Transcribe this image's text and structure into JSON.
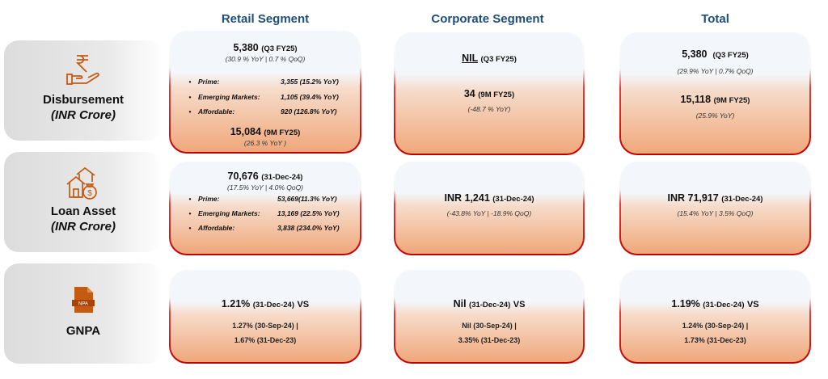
{
  "columns": {
    "retail": "Retail Segment",
    "corporate": "Corporate Segment",
    "total": "Total"
  },
  "rows": {
    "disbursement": {
      "title": "Disbursement",
      "subtitle": "(INR Crore)",
      "icon": "rupee-hand-icon"
    },
    "loan_asset": {
      "title": "Loan Asset",
      "subtitle": "(INR Crore)",
      "icon": "houses-money-bag-icon"
    },
    "gnpa": {
      "title": "GNPA",
      "icon": "npa-document-icon",
      "icon_text": "NPA"
    }
  },
  "colors": {
    "accent": "#c55a11",
    "header": "#1f4e79",
    "card_border": "#c00000",
    "card_bottom": "#f0a77a"
  },
  "disbursement": {
    "retail": {
      "value": "5,380",
      "period": "(Q3 FY25)",
      "growth": "(30.9 % YoY |  0.7 % QoQ)",
      "items": [
        {
          "label": "Prime:",
          "value": "3,355 (15.2% YoY)"
        },
        {
          "label": "Emerging Markets:",
          "value": "1,105 (39.4% YoY)"
        },
        {
          "label": "Affordable:",
          "value": "920 (126.8% YoY)"
        }
      ],
      "ytd_value": "15,084",
      "ytd_period": "(9M FY25)",
      "ytd_growth": "(26.3 % YoY )"
    },
    "corporate": {
      "value": "NIL",
      "period": "(Q3 FY25)",
      "ytd_value": "34",
      "ytd_period": "(9M FY25)",
      "ytd_growth": "(-48.7 % YoY)"
    },
    "total": {
      "value": "5,380",
      "period": "(Q3 FY25)",
      "growth": "(29.9% YoY | 0.7% QoQ)",
      "ytd_value": "15,118",
      "ytd_period": "(9M FY25)",
      "ytd_growth": "(25.9% YoY)"
    }
  },
  "loan_asset": {
    "retail": {
      "value": "70,676",
      "period": "(31-Dec-24)",
      "growth": "(17.5% YoY | 4.0% QoQ)",
      "items": [
        {
          "label": "Prime:",
          "value": "53,669(11.3% YoY)"
        },
        {
          "label": "Emerging Markets:",
          "value": "13,169 (22.5% YoY)"
        },
        {
          "label": "Affordable:",
          "value": "3,838 (234.0% YoY)"
        }
      ]
    },
    "corporate": {
      "value": "INR 1,241",
      "period": "(31-Dec-24)",
      "growth": "(-43.8% YoY | -18.9% QoQ)"
    },
    "total": {
      "value": "INR 71,917",
      "period": "(31-Dec-24)",
      "growth": "(15.4% YoY | 3.5% QoQ)"
    }
  },
  "gnpa": {
    "retail": {
      "value": "1.21%",
      "period": "(31-Dec-24)",
      "vs": "VS",
      "line1": "1.27% (30-Sep-24) |",
      "line2": "1.67% (31-Dec-23)"
    },
    "corporate": {
      "value": "Nil",
      "period": "(31-Dec-24)",
      "vs": "VS",
      "line1": "Nil (30-Sep-24) |",
      "line2": "3.35% (31-Dec-23)"
    },
    "total": {
      "value": "1.19%",
      "period": "(31-Dec-24)",
      "vs": "VS",
      "line1": "1.24% (30-Sep-24) |",
      "line2": "1.73% (31-Dec-23)"
    }
  }
}
